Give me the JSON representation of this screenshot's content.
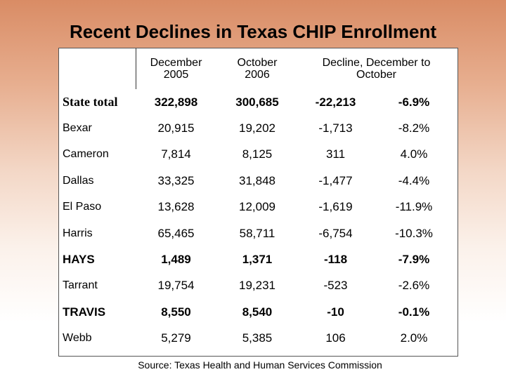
{
  "title": "Recent Declines in Texas CHIP Enrollment",
  "source": "Source: Texas Health and Human Services Commission",
  "chart_data": {
    "type": "table",
    "title": "Recent Declines in Texas CHIP Enrollment",
    "columns": [
      "December 2005",
      "October 2006",
      "Decline, December to October"
    ],
    "header_lines": {
      "dec": [
        "December",
        "2005"
      ],
      "oct": [
        "October",
        "2006"
      ],
      "decline": [
        "Decline, December to",
        "October"
      ]
    },
    "rows": [
      {
        "name": "State total",
        "dec": "322,898",
        "oct": "300,685",
        "change": "-22,213",
        "pct": "-6.9%"
      },
      {
        "name": "Bexar",
        "dec": "20,915",
        "oct": "19,202",
        "change": "-1,713",
        "pct": "-8.2%"
      },
      {
        "name": "Cameron",
        "dec": "7,814",
        "oct": "8,125",
        "change": "311",
        "pct": "4.0%"
      },
      {
        "name": "Dallas",
        "dec": "33,325",
        "oct": "31,848",
        "change": "-1,477",
        "pct": "-4.4%"
      },
      {
        "name": "El Paso",
        "dec": "13,628",
        "oct": "12,009",
        "change": "-1,619",
        "pct": "-11.9%"
      },
      {
        "name": "Harris",
        "dec": "65,465",
        "oct": "58,711",
        "change": "-6,754",
        "pct": "-10.3%"
      },
      {
        "name": "HAYS",
        "dec": "1,489",
        "oct": "1,371",
        "change": "-118",
        "pct": "-7.9%"
      },
      {
        "name": "Tarrant",
        "dec": "19,754",
        "oct": "19,231",
        "change": "-523",
        "pct": "-2.6%"
      },
      {
        "name": "TRAVIS",
        "dec": "8,550",
        "oct": "8,540",
        "change": "-10",
        "pct": "-0.1%"
      },
      {
        "name": "Webb",
        "dec": "5,279",
        "oct": "5,385",
        "change": "106",
        "pct": "2.0%"
      }
    ],
    "bold_rows": [
      "State total",
      "HAYS",
      "TRAVIS"
    ]
  }
}
